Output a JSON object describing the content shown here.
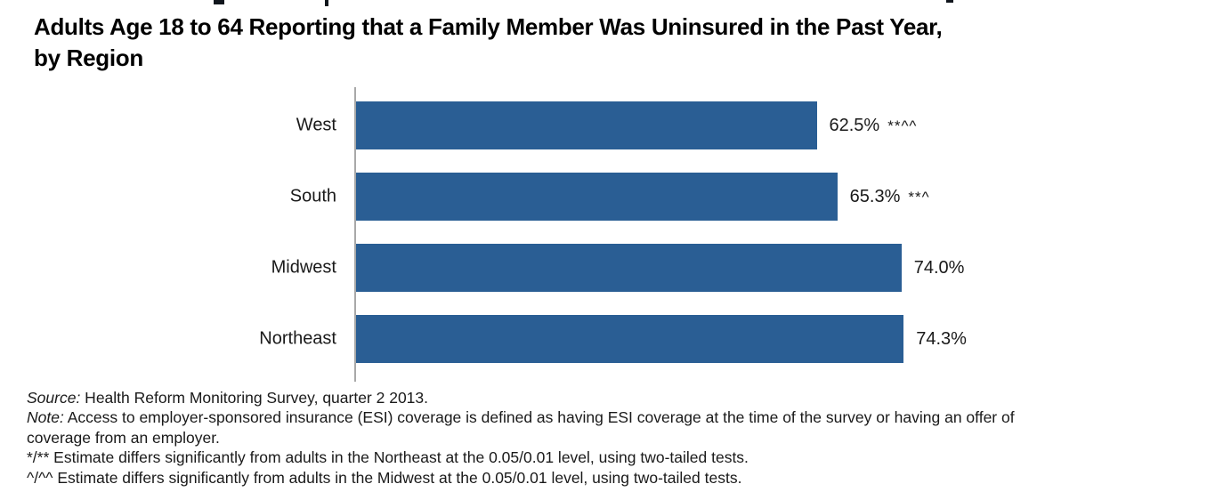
{
  "header": {
    "title_line1": "Adults Age 18 to 64 Reporting that a Family Member Was Uninsured in the Past Year,",
    "title_line2": "by Region"
  },
  "chart_data": {
    "type": "bar",
    "orientation": "horizontal",
    "title": "Adults Age 18 to 64 Reporting that a Family Member Was Uninsured in the Past Year, by Region",
    "categories": [
      "West",
      "South",
      "Midwest",
      "Northeast"
    ],
    "values": [
      62.5,
      65.3,
      74.0,
      74.3
    ],
    "value_labels": [
      "62.5%",
      "65.3%",
      "74.0%",
      "74.3%"
    ],
    "significance_markers": [
      "**^^",
      "**^",
      "",
      ""
    ],
    "xlabel": "",
    "ylabel": "",
    "xlim": [
      0,
      100
    ],
    "grid": false,
    "legend": false,
    "bar_color": "#2a5e94",
    "axis_line_color": "#a8a8a8",
    "text_color": "#1a1a1a"
  },
  "notes": {
    "source_prefix": "Source:",
    "source_text": " Health Reform Monitoring Survey, quarter 2 2013.",
    "note_prefix": "Note:",
    "note_line1": " Access to employer-sponsored insurance (ESI) coverage is defined as having ESI coverage at the time of the survey or having an offer of",
    "note_line2": "coverage from an employer.",
    "footnote_northeast": "*/** Estimate differs significantly from adults in the Northeast at the 0.05/0.01 level, using two-tailed tests.",
    "footnote_midwest": "^/^^ Estimate differs significantly from adults in the Midwest at the 0.05/0.01 level, using two-tailed tests."
  }
}
